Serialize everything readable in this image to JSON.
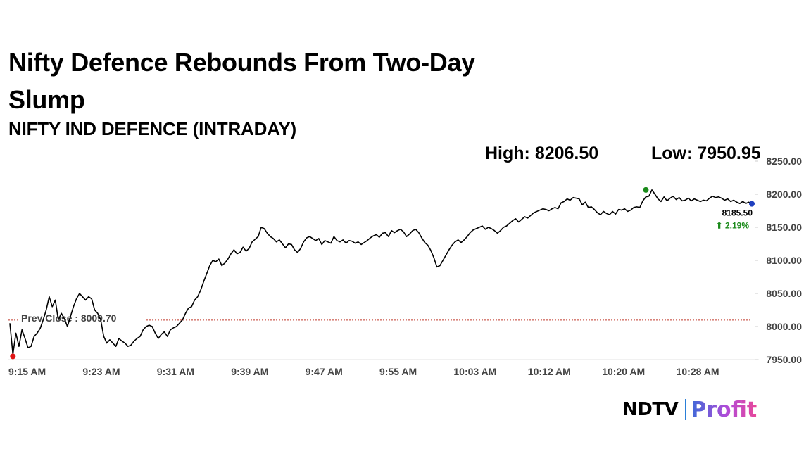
{
  "header": {
    "title": "Nifty Defence Rebounds From Two-Day Slump",
    "subtitle": "NIFTY IND DEFENCE (INTRADAY)"
  },
  "stats": {
    "high_label": "High: 8206.50",
    "low_label": "Low: 7950.95"
  },
  "brand": {
    "ndtv": "NDTV",
    "profit": "Profit"
  },
  "colors": {
    "line": "#000000",
    "prev_close_line": "#c0392b",
    "high_dot": "#1a8a1a",
    "low_dot": "#e01515",
    "last_dot": "#1f3fbf",
    "change_positive": "#1a8a1a"
  },
  "chart_data": {
    "type": "line",
    "title": "NIFTY IND DEFENCE (INTRADAY)",
    "xlabel": "",
    "ylabel": "",
    "ylim": [
      7950,
      8250
    ],
    "yticks": [
      "7950.00",
      "8000.00",
      "8050.00",
      "8100.00",
      "8150.00",
      "8200.00",
      "8250.00"
    ],
    "xticks": [
      "9:15 AM",
      "9:23 AM",
      "9:31 AM",
      "9:39 AM",
      "9:47 AM",
      "9:55 AM",
      "10:03 AM",
      "10:12 AM",
      "10:20 AM",
      "10:28 AM"
    ],
    "axis_side": "right",
    "grid": false,
    "prev_close": {
      "label": "Prev Close : 8009.70",
      "value": 8009.7
    },
    "last": {
      "value_label": "8185.50",
      "change_label": "⬆ 2.19%",
      "value": 8185.5
    },
    "high_point": {
      "index": 210,
      "value": 8206.5
    },
    "low_point": {
      "index": 1,
      "value": 7958
    },
    "series": [
      {
        "x_start": 0,
        "x_step": 0.2,
        "values": [
          8005,
          7958,
          7990,
          7970,
          7995,
          7982,
          7968,
          7970,
          7985,
          7990,
          7997,
          8010,
          8025,
          8045,
          8030,
          8040,
          8010,
          8020,
          8012,
          8000,
          8015,
          8030,
          8042,
          8050,
          8045,
          8040,
          8045,
          8042,
          8025,
          8020,
          8010,
          7985,
          7975,
          7980,
          7975,
          7970,
          7982,
          7978,
          7975,
          7970,
          7972,
          7978,
          7982,
          7985,
          7995,
          8000,
          8002,
          8000,
          7990,
          7982,
          7988,
          7992,
          7985,
          7995,
          7998,
          8000,
          8005,
          8010,
          8020,
          8028,
          8030,
          8040,
          8045,
          8055,
          8068,
          8080,
          8092,
          8100,
          8098,
          8102,
          8092,
          8096,
          8102,
          8110,
          8116,
          8110,
          8112,
          8120,
          8114,
          8118,
          8128,
          8132,
          8136,
          8150,
          8148,
          8141,
          8136,
          8133,
          8128,
          8131,
          8125,
          8119,
          8125,
          8124,
          8116,
          8112,
          8118,
          8128,
          8134,
          8136,
          8133,
          8130,
          8133,
          8124,
          8130,
          8128,
          8126,
          8136,
          8130,
          8128,
          8131,
          8126,
          8130,
          8129,
          8126,
          8128,
          8124,
          8127,
          8130,
          8134,
          8137,
          8139,
          8135,
          8141,
          8142,
          8136,
          8145,
          8142,
          8145,
          8147,
          8143,
          8136,
          8140,
          8145,
          8147,
          8142,
          8134,
          8127,
          8123,
          8115,
          8104,
          8090,
          8092,
          8100,
          8108,
          8116,
          8123,
          8128,
          8131,
          8127,
          8131,
          8136,
          8142,
          8146,
          8148,
          8150,
          8152,
          8147,
          8150,
          8148,
          8145,
          8141,
          8145,
          8150,
          8152,
          8156,
          8160,
          8163,
          8158,
          8162,
          8166,
          8164,
          8168,
          8172,
          8174,
          8176,
          8178,
          8177,
          8175,
          8178,
          8180,
          8178,
          8187,
          8189,
          8193,
          8191,
          8195,
          8194,
          8193,
          8184,
          8188,
          8180,
          8181,
          8177,
          8172,
          8169,
          8174,
          8171,
          8169,
          8174,
          8170,
          8177,
          8176,
          8178,
          8174,
          8176,
          8180,
          8181,
          8180,
          8190,
          8196,
          8197,
          8206.5,
          8200,
          8193,
          8189,
          8196,
          8190,
          8194,
          8197,
          8192,
          8195,
          8190,
          8191,
          8194,
          8190,
          8193,
          8191,
          8189,
          8191,
          8190,
          8194,
          8197,
          8195,
          8196,
          8194,
          8191,
          8193,
          8189,
          8191,
          8188,
          8186,
          8189,
          8186,
          8188,
          8185.5
        ]
      }
    ]
  }
}
